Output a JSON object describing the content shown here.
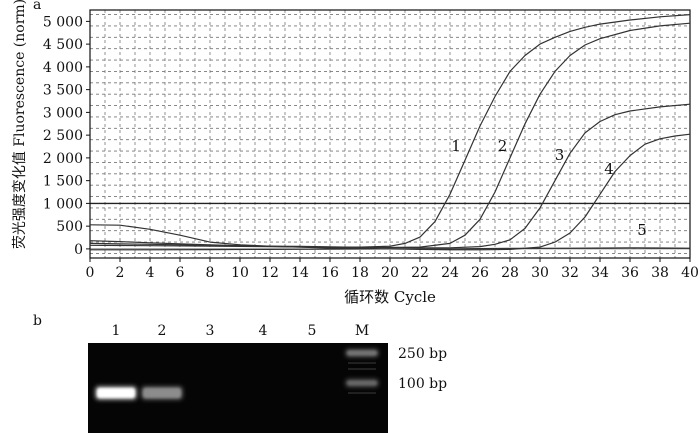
{
  "panels": {
    "a_label": "a",
    "b_label": "b"
  },
  "chart_data": {
    "type": "line",
    "xlabel": "循环数 Cycle",
    "ylabel": "荧光强度变化值 Fluorescence (norm)",
    "xlim": [
      0,
      40
    ],
    "ylim": [
      -200,
      5250
    ],
    "xticks": [
      0,
      2,
      4,
      6,
      8,
      10,
      12,
      14,
      16,
      18,
      20,
      22,
      24,
      26,
      28,
      30,
      32,
      34,
      36,
      38,
      40
    ],
    "yticks": [
      0,
      500,
      1000,
      1500,
      2000,
      2500,
      3000,
      3500,
      4000,
      4500,
      5000
    ],
    "ytick_labels": [
      "0",
      "500",
      "1 000",
      "1 500",
      "2 000",
      "2 500",
      "3 000",
      "3 500",
      "4 000",
      "4 500",
      "5 000"
    ],
    "grid": true,
    "threshold": 1000,
    "series": [
      {
        "name": "1",
        "label_at": [
          24.4,
          2150
        ],
        "x": [
          0,
          2,
          4,
          6,
          8,
          10,
          12,
          14,
          16,
          18,
          20,
          21,
          22,
          23,
          24,
          25,
          26,
          27,
          28,
          29,
          30,
          31,
          32,
          33,
          34,
          36,
          38,
          40
        ],
        "y": [
          180,
          160,
          135,
          110,
          90,
          70,
          55,
          45,
          40,
          40,
          60,
          120,
          260,
          600,
          1200,
          1950,
          2700,
          3350,
          3900,
          4250,
          4500,
          4650,
          4780,
          4870,
          4940,
          5030,
          5100,
          5150
        ]
      },
      {
        "name": "2",
        "label_at": [
          27.5,
          2150
        ],
        "x": [
          0,
          2,
          4,
          6,
          8,
          10,
          12,
          14,
          16,
          18,
          20,
          22,
          24,
          25,
          26,
          27,
          28,
          29,
          30,
          31,
          32,
          33,
          34,
          36,
          38,
          40
        ],
        "y": [
          120,
          110,
          100,
          90,
          80,
          70,
          60,
          55,
          45,
          35,
          30,
          40,
          120,
          300,
          650,
          1250,
          2000,
          2750,
          3400,
          3900,
          4250,
          4480,
          4620,
          4800,
          4900,
          4960
        ]
      },
      {
        "name": "3",
        "label_at": [
          31.3,
          1950
        ],
        "x": [
          0,
          2,
          4,
          6,
          8,
          10,
          12,
          14,
          16,
          18,
          20,
          22,
          24,
          26,
          27,
          28,
          29,
          30,
          31,
          32,
          33,
          34,
          35,
          36,
          38,
          40
        ],
        "y": [
          80,
          75,
          70,
          65,
          60,
          55,
          50,
          45,
          40,
          35,
          30,
          25,
          25,
          50,
          100,
          200,
          450,
          900,
          1500,
          2100,
          2550,
          2800,
          2950,
          3030,
          3120,
          3180
        ]
      },
      {
        "name": "4",
        "label_at": [
          34.6,
          1650
        ],
        "x": [
          0,
          2,
          4,
          6,
          8,
          10,
          12,
          14,
          16,
          18,
          20,
          22,
          24,
          26,
          28,
          30,
          31,
          32,
          33,
          34,
          35,
          36,
          37,
          38,
          39,
          40
        ],
        "y": [
          530,
          520,
          430,
          300,
          150,
          90,
          60,
          40,
          20,
          10,
          0,
          -10,
          -20,
          -20,
          -10,
          40,
          150,
          350,
          700,
          1200,
          1700,
          2050,
          2300,
          2420,
          2480,
          2520
        ]
      },
      {
        "name": "5",
        "label_at": [
          36.8,
          310
        ],
        "x": [
          0,
          4,
          8,
          12,
          16,
          20,
          24,
          28,
          32,
          36,
          38,
          40
        ],
        "y": [
          -20,
          -20,
          -15,
          -10,
          -5,
          0,
          0,
          10,
          15,
          25,
          20,
          15
        ]
      }
    ]
  },
  "gel": {
    "lanes": [
      "1",
      "2",
      "3",
      "4",
      "5",
      "M"
    ],
    "marker_labels": [
      "250 bp",
      "100 bp"
    ],
    "bands": [
      {
        "lane": "1",
        "size": "100 bp",
        "intensity": 1.0
      },
      {
        "lane": "2",
        "size": "100 bp",
        "intensity": 0.55
      },
      {
        "lane": "M",
        "size": "250 bp",
        "intensity": 0.45
      },
      {
        "lane": "M",
        "size": "100 bp",
        "intensity": 0.4
      }
    ]
  }
}
